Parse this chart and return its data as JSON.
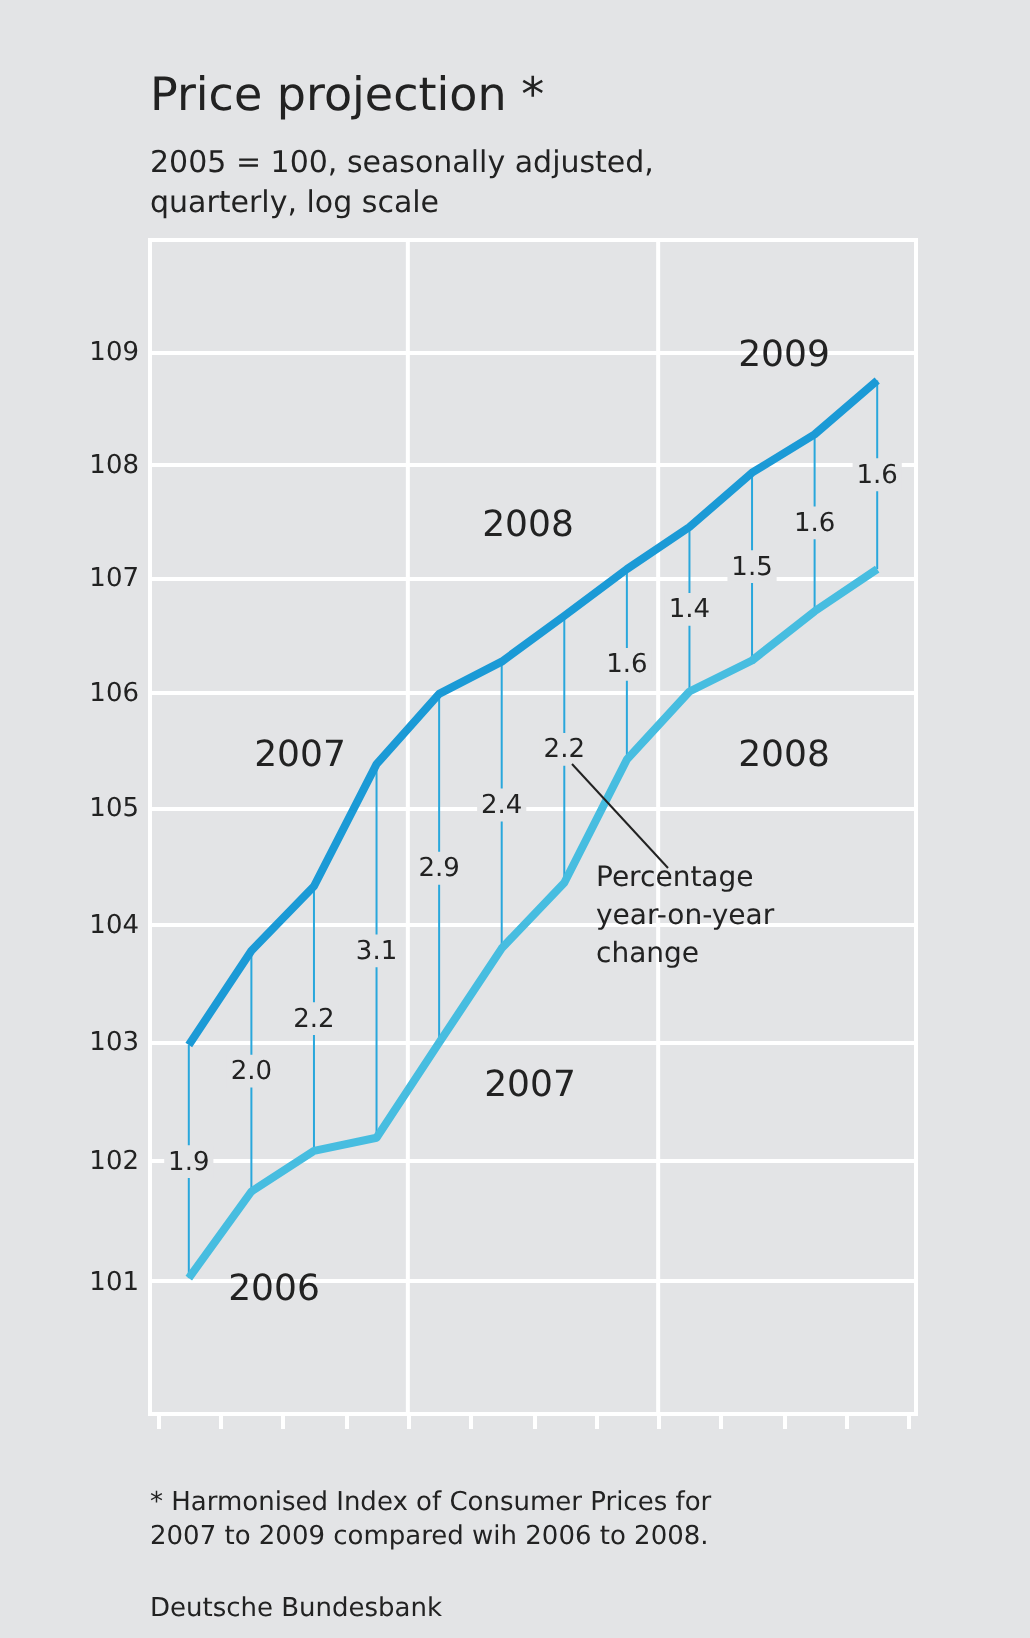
{
  "chart_data": {
    "type": "line",
    "title": "Price projection *",
    "subtitle": "2005 = 100, seasonally adjusted, quarterly, log scale",
    "categories": [
      null,
      null,
      null,
      null,
      null,
      null,
      null,
      null,
      null,
      null,
      null,
      null
    ],
    "series": [
      {
        "color": "#1b9ad6",
        "values": [
          102.97,
          103.77,
          104.32,
          105.37,
          105.98,
          106.26,
          106.66,
          107.07,
          107.44,
          107.92,
          108.26,
          108.74
        ]
      },
      {
        "color": "#47bde0",
        "values": [
          101.02,
          101.74,
          102.08,
          102.19,
          102.99,
          103.79,
          104.35,
          105.41,
          106.0,
          106.27,
          106.7,
          107.07
        ],
        "errors": [
          [
            101.02,
            102.97
          ],
          [
            101.74,
            103.77
          ],
          [
            102.08,
            104.32
          ],
          [
            102.19,
            105.37
          ],
          [
            102.99,
            105.98
          ],
          [
            103.79,
            106.26
          ],
          [
            104.35,
            106.66
          ],
          [
            105.41,
            107.07
          ],
          [
            106.0,
            107.44
          ],
          [
            106.27,
            107.92
          ],
          [
            106.7,
            108.26
          ],
          [
            107.07,
            108.74
          ]
        ]
      }
    ],
    "log": "y",
    "ylim": [
      99.9,
      110.0
    ],
    "yticks": [
      101,
      102,
      103,
      104,
      105,
      106,
      107,
      108,
      109
    ],
    "tick_labels": "y",
    "grid": "y",
    "marker": "none",
    "line_style": "solid",
    "annotations": [
      "1.9",
      "2.0",
      "2.2",
      "3.1",
      "2.9",
      "2.4",
      "2.2",
      "1.6",
      "1.4",
      "1.5",
      "1.6",
      "1.6",
      "2007",
      "2008",
      "2009",
      "2006",
      "2007",
      "2008",
      "Percentage year-on-year change",
      "* Harmonised Index of Consumer Prices for 2007 to 2009 compared wih 2006 to 2008.",
      "Deutsche Bundesbank"
    ]
  }
}
